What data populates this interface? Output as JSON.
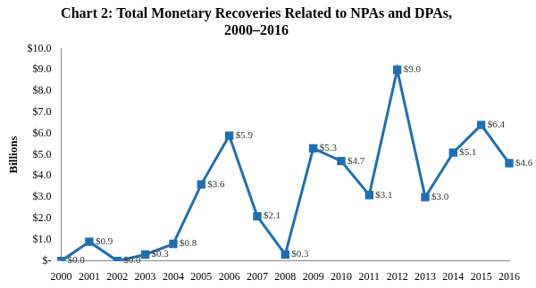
{
  "chart_data": {
    "type": "line",
    "title": "Chart 2: Total Monetary Recoveries Related to NPAs and DPAs, 2000–2016",
    "y_label": "Billions",
    "categories": [
      "2000",
      "2001",
      "2002",
      "2003",
      "2004",
      "2005",
      "2006",
      "2007",
      "2008",
      "2009",
      "2010",
      "2011",
      "2012",
      "2013",
      "2014",
      "2015",
      "2016"
    ],
    "values": [
      0.0,
      0.9,
      0.0,
      0.3,
      0.8,
      3.6,
      5.9,
      2.1,
      0.3,
      5.3,
      4.7,
      3.1,
      9.0,
      3.0,
      5.1,
      6.4,
      4.6
    ],
    "value_labels": [
      "$0.0",
      "$0.9",
      "$0.0",
      "$0.3",
      "$0.8",
      "$3.6",
      "$5.9",
      "$2.1",
      "$0.3",
      "$5.3",
      "$4.7",
      "$3.1",
      "$9.0",
      "$3.0",
      "$5.1",
      "$6.4",
      "$4.6"
    ],
    "color": "#1f6fb5",
    "marker": "square",
    "line_style": "solid",
    "data_labels": true,
    "grid": false,
    "ylim": [
      0,
      10
    ],
    "yticks": [
      {
        "value": 0,
        "label": "$-"
      },
      {
        "value": 1,
        "label": "$1.0"
      },
      {
        "value": 2,
        "label": "$2.0"
      },
      {
        "value": 3,
        "label": "$3.0"
      },
      {
        "value": 4,
        "label": "$4.0"
      },
      {
        "value": 5,
        "label": "$5.0"
      },
      {
        "value": 6,
        "label": "$6.0"
      },
      {
        "value": 7,
        "label": "$7.0"
      },
      {
        "value": 8,
        "label": "$8.0"
      },
      {
        "value": 9,
        "label": "$9.0"
      },
      {
        "value": 10,
        "label": "$10.0"
      }
    ]
  }
}
